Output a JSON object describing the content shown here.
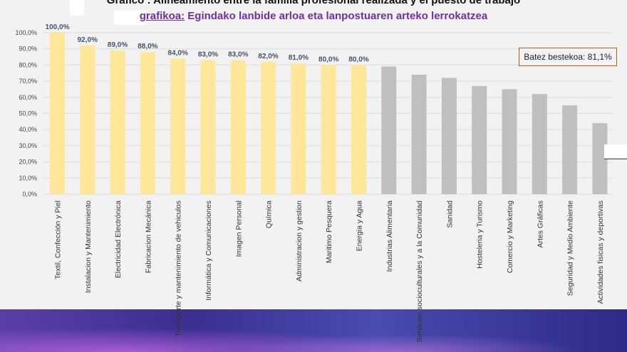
{
  "header": {
    "title": "Grafico : Alineamiento entre la familia profesional realizada y el puesto de trabajo",
    "subtitle_prefix": "grafikoa:",
    "subtitle": " Egindako lanbide arloa eta lanpostuaren arteko lerrokatzea"
  },
  "average_box": "Batez bestekoa: 81,1%",
  "chart_data": {
    "type": "bar",
    "ylim": [
      0,
      100
    ],
    "yticks": [
      "0,0%",
      "10,0%",
      "20,0%",
      "30,0%",
      "40,0%",
      "50,0%",
      "60,0%",
      "70,0%",
      "80,0%",
      "90,0%",
      "100,0%"
    ],
    "grid": true,
    "categories": [
      "Textil, Confección y Piel",
      "Instalacion y Mantenimiento",
      "Electricidad Electrónica",
      "Fabricacion Mecánica",
      "Transporte y mantenimiento de vehiculos",
      "Informática y Comunicaciones",
      "Imagen Personal",
      "Química",
      "Administracion y gestion",
      "Maritimo Pesquera",
      "Energia y Agua",
      "Industrias Alimentaria",
      "Servicios socioculturales y a la Comunidad",
      "Sanidad",
      "Hosteleria y Turismo",
      "Comercio y Marketing",
      "Artes Gráficas",
      "Seguridad y Medio Ambiente",
      "Actividades fisicas y deportivas"
    ],
    "values": [
      100,
      92,
      89,
      88,
      84,
      83,
      83,
      82,
      81,
      80,
      80,
      79,
      74,
      72,
      67,
      65,
      62,
      55,
      44
    ],
    "data_labels": [
      "100,0%",
      "92,0%",
      "89,0%",
      "88,0%",
      "84,0%",
      "83,0%",
      "83,0%",
      "82,0%",
      "81,0%",
      "80,0%",
      "80,0%",
      "",
      "",
      "",
      "",
      "",
      "",
      "",
      ""
    ],
    "colors": {
      "above_average": "#ffe699",
      "below_average": "#bfbfbf"
    }
  }
}
